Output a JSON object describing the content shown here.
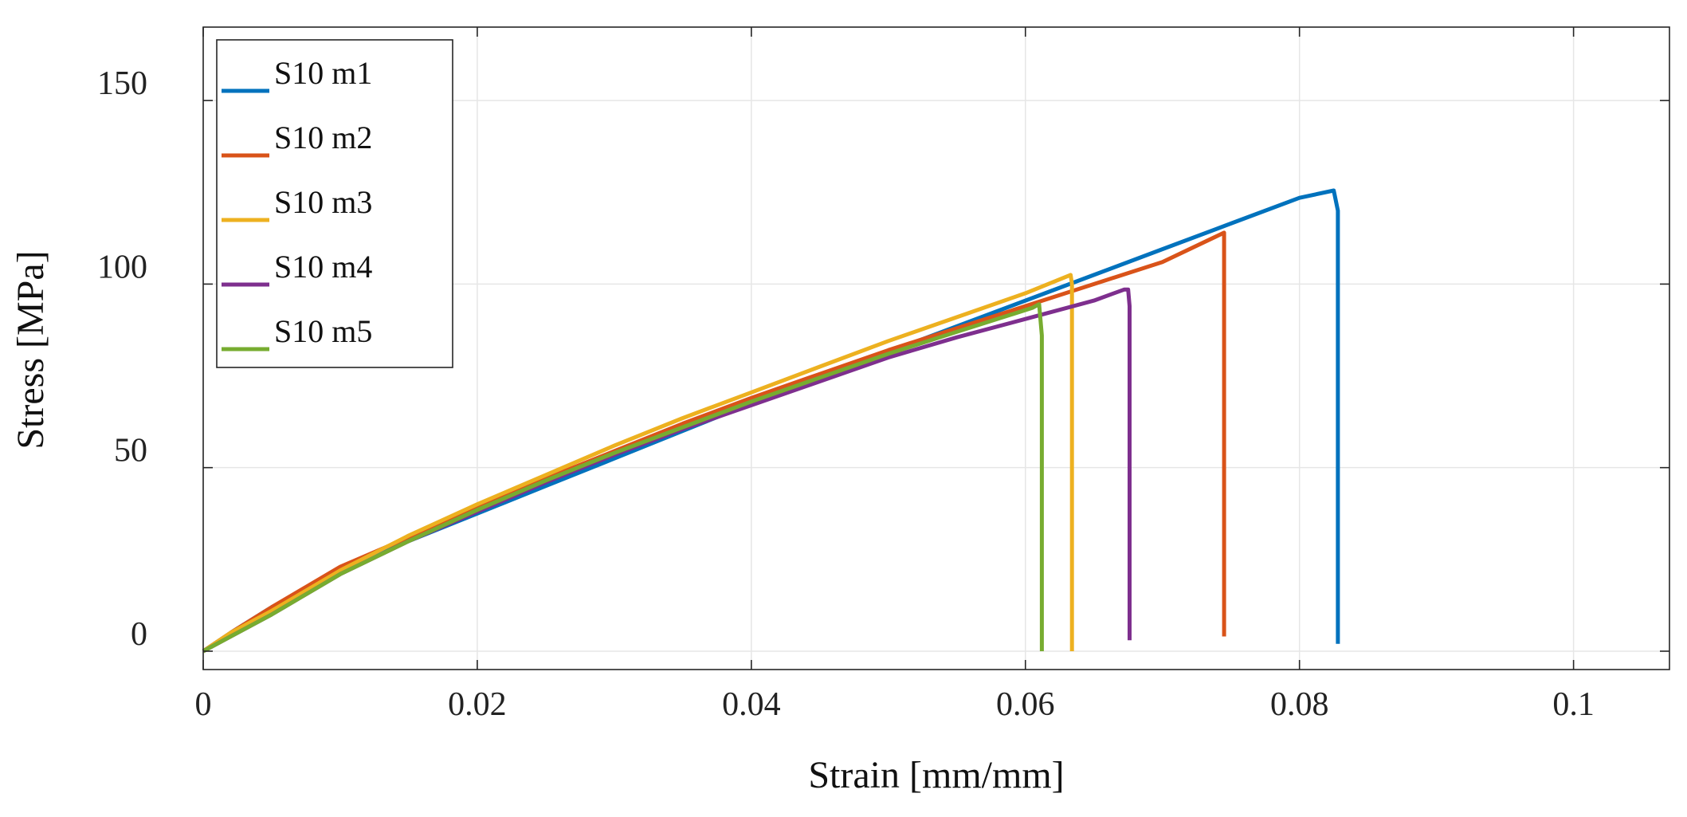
{
  "chart_data": {
    "type": "line",
    "title": "",
    "xlabel": "Strain [mm/mm]",
    "ylabel": "Stress [MPa]",
    "xlim": [
      0,
      0.107
    ],
    "ylim": [
      -5,
      170
    ],
    "xticks": [
      0,
      0.02,
      0.04,
      0.06,
      0.08,
      0.1
    ],
    "xtick_labels": [
      "0",
      "0.02",
      "0.04",
      "0.06",
      "0.08",
      "0.1"
    ],
    "yticks": [
      0,
      50,
      100,
      150
    ],
    "ytick_labels": [
      "0",
      "50",
      "100",
      "150"
    ],
    "grid": true,
    "legend_position": "top-left",
    "series": [
      {
        "name": "S10 m1",
        "color": "#0072BD",
        "x": [
          0,
          0.002,
          0.005,
          0.01,
          0.015,
          0.02,
          0.025,
          0.03,
          0.035,
          0.04,
          0.045,
          0.05,
          0.055,
          0.06,
          0.065,
          0.07,
          0.075,
          0.08,
          0.0825,
          0.0828,
          0.0828
        ],
        "y": [
          0,
          5,
          12,
          22,
          30,
          37.5,
          45,
          52.5,
          60,
          67.5,
          74.5,
          81.5,
          88.5,
          95.5,
          102.5,
          109.5,
          116.5,
          123.5,
          125.5,
          120,
          2
        ]
      },
      {
        "name": "S10 m2",
        "color": "#D95319",
        "x": [
          0,
          0.002,
          0.005,
          0.01,
          0.015,
          0.02,
          0.025,
          0.03,
          0.035,
          0.04,
          0.045,
          0.05,
          0.055,
          0.06,
          0.065,
          0.07,
          0.0745,
          0.0745
        ],
        "y": [
          0,
          5,
          12,
          23,
          31,
          39,
          47,
          54.5,
          62,
          69,
          75.5,
          82,
          88,
          94,
          100,
          106,
          114,
          4
        ]
      },
      {
        "name": "S10 m3",
        "color": "#EDB120",
        "x": [
          0,
          0.002,
          0.005,
          0.01,
          0.015,
          0.02,
          0.025,
          0.03,
          0.035,
          0.04,
          0.045,
          0.05,
          0.055,
          0.06,
          0.0633,
          0.0634,
          0.0634
        ],
        "y": [
          0,
          5,
          11,
          22,
          31.5,
          40,
          48,
          56,
          63.5,
          70.5,
          77.5,
          84.5,
          91,
          97.5,
          102.5,
          100,
          0
        ]
      },
      {
        "name": "S10 m4",
        "color": "#7E2F8E",
        "x": [
          0,
          0.002,
          0.005,
          0.01,
          0.015,
          0.02,
          0.025,
          0.03,
          0.035,
          0.04,
          0.045,
          0.05,
          0.055,
          0.06,
          0.065,
          0.0672,
          0.0675,
          0.0676,
          0.0676
        ],
        "y": [
          0,
          4,
          10,
          21,
          30,
          38,
          46,
          53.5,
          60.5,
          67,
          73.5,
          80,
          85.5,
          90.5,
          95.5,
          98.5,
          98.5,
          94,
          3
        ]
      },
      {
        "name": "S10 m5",
        "color": "#77AC30",
        "x": [
          0,
          0.002,
          0.005,
          0.01,
          0.015,
          0.02,
          0.025,
          0.03,
          0.035,
          0.04,
          0.045,
          0.05,
          0.055,
          0.0605,
          0.061,
          0.0612,
          0.0612
        ],
        "y": [
          0,
          4,
          10,
          21,
          30,
          38.5,
          46.5,
          54,
          61,
          68,
          74.5,
          81,
          87,
          93.5,
          94.5,
          86,
          0
        ]
      }
    ]
  }
}
